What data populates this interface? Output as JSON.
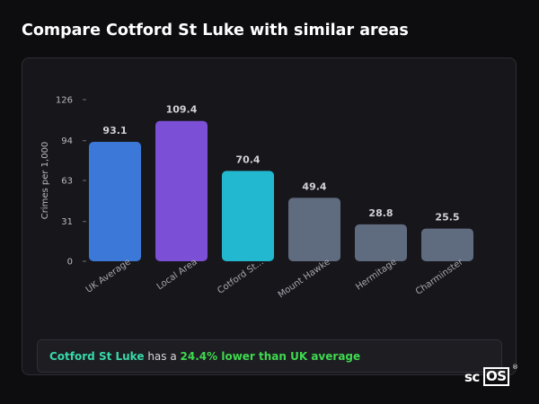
{
  "page": {
    "title": "Compare Cotford St Luke with similar areas"
  },
  "summary": {
    "area_name": "Cotford St Luke",
    "middle_text": "has a",
    "comparison_text": "24.4% lower than UK average"
  },
  "logo": {
    "text_sc": "sc",
    "text_os": "OS",
    "registered": "®"
  },
  "colors": {
    "uk_average": "#3b78d8",
    "local_area": "#7b4fd6",
    "cotford": "#22b8cf",
    "other": "#5f6b7e",
    "area_highlight": "#38d9a9",
    "comparison_highlight": "#3fd94f"
  },
  "chart_data": {
    "type": "bar",
    "ylabel": "Crimes per 1,000",
    "ylim": [
      0,
      126
    ],
    "yticks": [
      0,
      31,
      63,
      94,
      126
    ],
    "categories": [
      "UK Average",
      "Local Area",
      "Cotford St...",
      "Mount Hawke",
      "Hermitage",
      "Charminster"
    ],
    "values": [
      93.1,
      109.4,
      70.4,
      49.4,
      28.8,
      25.5
    ],
    "value_labels": [
      "93.1",
      "109.4",
      "70.4",
      "49.4",
      "28.8",
      "25.5"
    ],
    "bar_colors": [
      "#3b78d8",
      "#7b4fd6",
      "#22b8cf",
      "#5f6b7e",
      "#5f6b7e",
      "#5f6b7e"
    ],
    "grid": false,
    "legend": "none"
  }
}
